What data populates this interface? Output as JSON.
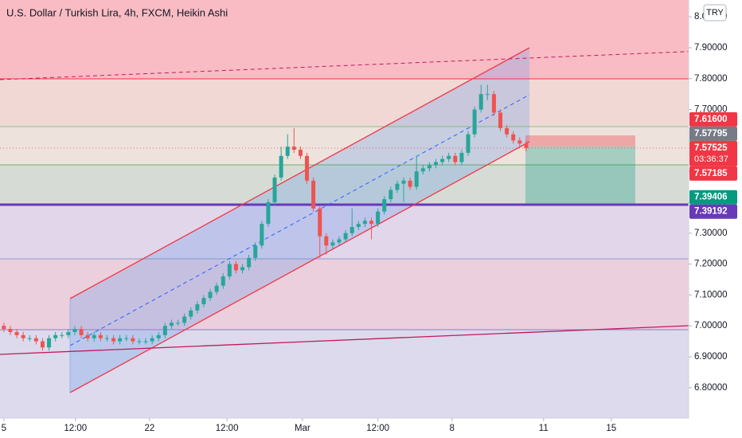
{
  "chart_data": {
    "type": "candlestick",
    "title": "U.S. Dollar / Turkish Lira, 4h, FXCM, Heikin Ashi",
    "currency": "TRY",
    "up_color": "#26a69a",
    "down_color": "#ef5350",
    "x": [
      0,
      1,
      2,
      3,
      4,
      5,
      6,
      7,
      8,
      9,
      10,
      11,
      12,
      13,
      14,
      15,
      16,
      17,
      18,
      19,
      20,
      21,
      22,
      23,
      24,
      25,
      26,
      27,
      28,
      29,
      30,
      31,
      32,
      33,
      34,
      35,
      36,
      37,
      38,
      39,
      40,
      41,
      42,
      43,
      44,
      45,
      46,
      47,
      48,
      49,
      50,
      51,
      52,
      53,
      54,
      55,
      56,
      57,
      58,
      59,
      60,
      61,
      62,
      63,
      64,
      65,
      66,
      67,
      68,
      69,
      70,
      71,
      72,
      73,
      74,
      75,
      76,
      77,
      78,
      79,
      80,
      81
    ],
    "open": [
      7.0,
      6.99,
      6.98,
      6.97,
      6.96,
      6.96,
      6.95,
      6.93,
      6.96,
      6.97,
      6.97,
      6.98,
      6.99,
      6.97,
      6.96,
      6.97,
      6.96,
      6.96,
      6.95,
      6.96,
      6.96,
      6.95,
      6.95,
      6.95,
      6.96,
      6.97,
      7.0,
      7.01,
      7.01,
      7.03,
      7.05,
      7.07,
      7.09,
      7.11,
      7.13,
      7.16,
      7.2,
      7.18,
      7.19,
      7.22,
      7.26,
      7.33,
      7.4,
      7.48,
      7.55,
      7.58,
      7.57,
      7.55,
      7.47,
      7.38,
      7.29,
      7.26,
      7.27,
      7.28,
      7.3,
      7.32,
      7.33,
      7.34,
      7.33,
      7.37,
      7.41,
      7.44,
      7.46,
      7.47,
      7.45,
      7.5,
      7.51,
      7.52,
      7.53,
      7.54,
      7.55,
      7.53,
      7.56,
      7.62,
      7.7,
      7.75,
      7.75,
      7.69,
      7.64,
      7.62,
      7.6,
      7.59
    ],
    "high": [
      7.01,
      7.0,
      6.99,
      6.98,
      6.97,
      6.97,
      6.96,
      6.97,
      6.98,
      6.98,
      6.99,
      7.0,
      7.0,
      6.98,
      6.98,
      6.98,
      6.97,
      6.97,
      6.97,
      6.97,
      6.97,
      6.96,
      6.96,
      6.97,
      6.98,
      7.01,
      7.02,
      7.02,
      7.04,
      7.06,
      7.08,
      7.1,
      7.12,
      7.14,
      7.17,
      7.21,
      7.21,
      7.2,
      7.23,
      7.27,
      7.34,
      7.41,
      7.49,
      7.58,
      7.62,
      7.64,
      7.58,
      7.56,
      7.48,
      7.39,
      7.3,
      7.28,
      7.29,
      7.31,
      7.38,
      7.34,
      7.35,
      7.35,
      7.38,
      7.42,
      7.45,
      7.47,
      7.48,
      7.48,
      7.55,
      7.52,
      7.53,
      7.54,
      7.55,
      7.56,
      7.56,
      7.57,
      7.63,
      7.71,
      7.78,
      7.78,
      7.76,
      7.7,
      7.65,
      7.63,
      7.61,
      7.6
    ],
    "low": [
      6.98,
      6.97,
      6.96,
      6.95,
      6.95,
      6.94,
      6.92,
      6.92,
      6.95,
      6.96,
      6.96,
      6.97,
      6.96,
      6.95,
      6.95,
      6.95,
      6.95,
      6.94,
      6.94,
      6.95,
      6.94,
      6.94,
      6.94,
      6.94,
      6.95,
      6.96,
      6.99,
      7.0,
      7.0,
      7.02,
      7.04,
      7.06,
      7.08,
      7.1,
      7.12,
      7.15,
      7.17,
      7.17,
      7.18,
      7.21,
      7.25,
      7.32,
      7.39,
      7.47,
      7.54,
      7.56,
      7.54,
      7.46,
      7.37,
      7.22,
      7.23,
      7.25,
      7.26,
      7.27,
      7.29,
      7.31,
      7.32,
      7.28,
      7.32,
      7.36,
      7.4,
      7.43,
      7.4,
      7.44,
      7.44,
      7.49,
      7.5,
      7.51,
      7.52,
      7.53,
      7.52,
      7.52,
      7.55,
      7.61,
      7.69,
      7.73,
      7.68,
      7.63,
      7.61,
      7.59,
      7.58,
      7.565
    ],
    "close": [
      6.99,
      6.98,
      6.97,
      6.96,
      6.96,
      6.95,
      6.93,
      6.96,
      6.97,
      6.97,
      6.98,
      6.99,
      6.97,
      6.96,
      6.97,
      6.96,
      6.96,
      6.95,
      6.96,
      6.96,
      6.95,
      6.95,
      6.95,
      6.96,
      6.97,
      7.0,
      7.01,
      7.01,
      7.03,
      7.05,
      7.07,
      7.09,
      7.11,
      7.13,
      7.16,
      7.2,
      7.18,
      7.19,
      7.22,
      7.26,
      7.33,
      7.4,
      7.48,
      7.55,
      7.58,
      7.57,
      7.55,
      7.47,
      7.38,
      7.29,
      7.26,
      7.27,
      7.28,
      7.3,
      7.32,
      7.33,
      7.34,
      7.33,
      7.37,
      7.41,
      7.44,
      7.46,
      7.47,
      7.45,
      7.5,
      7.51,
      7.52,
      7.53,
      7.54,
      7.55,
      7.53,
      7.56,
      7.62,
      7.7,
      7.75,
      7.75,
      7.69,
      7.64,
      7.62,
      7.6,
      7.59,
      7.575
    ],
    "xlim": [
      -0.6,
      106.2
    ],
    "ylim": [
      6.7015,
      8.0546
    ],
    "xticks": [
      {
        "value": 0,
        "label": "5"
      },
      {
        "value": 11.1,
        "label": "12:00"
      },
      {
        "value": 22.6,
        "label": "22"
      },
      {
        "value": 34.6,
        "label": "12:00"
      },
      {
        "value": 46.3,
        "label": "Mar"
      },
      {
        "value": 58,
        "label": "12:00"
      },
      {
        "value": 69.5,
        "label": "8"
      },
      {
        "value": 83.7,
        "label": "11"
      },
      {
        "value": 94.2,
        "label": "15"
      }
    ],
    "yticks": [
      {
        "value": 6.8,
        "label": "6.80000"
      },
      {
        "value": 6.9,
        "label": "6.90000"
      },
      {
        "value": 7.0,
        "label": "7.00000"
      },
      {
        "value": 7.1,
        "label": "7.10000"
      },
      {
        "value": 7.2,
        "label": "7.20000"
      },
      {
        "value": 7.3,
        "label": "7.30000"
      },
      {
        "value": 7.4,
        "label": "7.40000"
      },
      {
        "value": 7.5,
        "label": "7.50000"
      },
      {
        "value": 7.6,
        "label": "7.60000"
      },
      {
        "value": 7.7,
        "label": "7.70000"
      },
      {
        "value": 7.8,
        "label": "7.80000"
      },
      {
        "value": 7.9,
        "label": "7.90000"
      },
      {
        "value": 8.0,
        "label": "8.00000"
      }
    ],
    "price_labels": [
      {
        "value": 7.616,
        "label": "7.61600",
        "color": "#f23645"
      },
      {
        "value": 7.57795,
        "label": "7.57795",
        "color": "#787b86"
      },
      {
        "value": 7.57525,
        "label": "7.57525",
        "color": "#f23645",
        "countdown": "03:36:37"
      },
      {
        "value": 7.57185,
        "label": "7.57185",
        "color": "#f23645"
      },
      {
        "value": 7.39406,
        "label": "7.39406",
        "color": "#089981"
      },
      {
        "value": 7.39192,
        "label": "7.39192",
        "color": "#673ab7"
      }
    ]
  }
}
